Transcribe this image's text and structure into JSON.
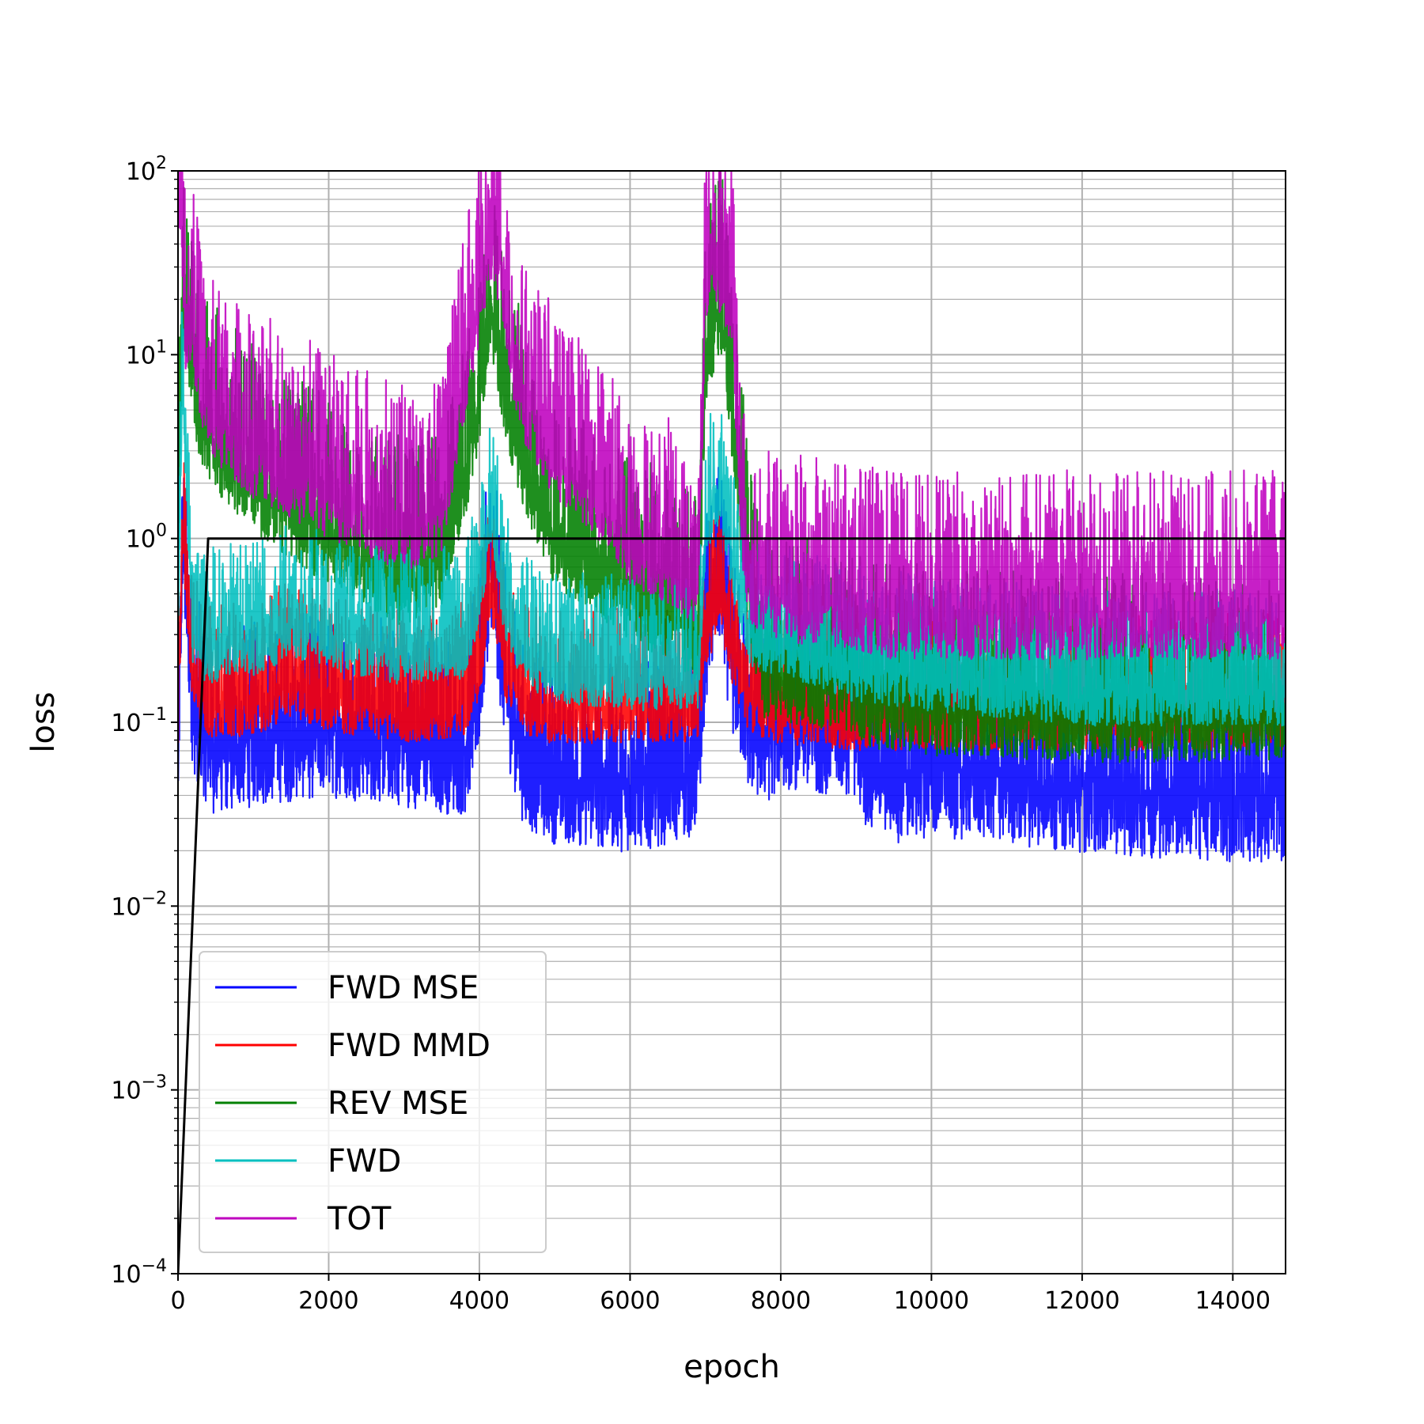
{
  "chart_data": {
    "type": "line",
    "title": "",
    "xlabel": "epoch",
    "ylabel": "loss",
    "xlim": [
      0,
      14700
    ],
    "ylim": [
      0.0001,
      100
    ],
    "yscale": "log",
    "grid": true,
    "legend_position": "bottom-left",
    "x_ticks": [
      0,
      2000,
      4000,
      6000,
      8000,
      10000,
      12000,
      14000
    ],
    "x_tick_labels": [
      "0",
      "2000",
      "4000",
      "6000",
      "8000",
      "10000",
      "12000",
      "14000"
    ],
    "y_ticks": [
      {
        "value": 0.0001,
        "base": "10",
        "exp": "−4"
      },
      {
        "value": 0.001,
        "base": "10",
        "exp": "−3"
      },
      {
        "value": 0.01,
        "base": "10",
        "exp": "−2"
      },
      {
        "value": 0.1,
        "base": "10",
        "exp": "−1"
      },
      {
        "value": 1,
        "base": "10",
        "exp": "0"
      },
      {
        "value": 10,
        "base": "10",
        "exp": "1"
      },
      {
        "value": 100,
        "base": "10",
        "exp": "2"
      }
    ],
    "series": [
      {
        "name": "FWD MSE",
        "color": "#0000ff",
        "x": [
          0,
          60,
          200,
          400,
          500,
          1000,
          2000,
          3000,
          3800,
          4000,
          4150,
          4350,
          4600,
          5000,
          6000,
          6500,
          6900,
          7000,
          7200,
          7350,
          7600,
          7800,
          8000,
          9000,
          9150,
          9300,
          9500,
          10000,
          11000,
          12000,
          13000,
          14000,
          14700
        ],
        "y": [
          0.05,
          1.0,
          0.12,
          0.08,
          0.07,
          0.08,
          0.09,
          0.08,
          0.07,
          0.15,
          0.8,
          0.15,
          0.06,
          0.05,
          0.045,
          0.05,
          0.055,
          0.3,
          0.6,
          0.2,
          0.09,
          0.08,
          0.1,
          0.09,
          0.06,
          0.06,
          0.05,
          0.055,
          0.05,
          0.045,
          0.042,
          0.04,
          0.04
        ],
        "noise_up": 0.3,
        "noise_down": 0.28
      },
      {
        "name": "FWD MMD",
        "color": "#ff0000",
        "x": [
          0,
          60,
          200,
          400,
          1000,
          1500,
          2000,
          3000,
          3800,
          4000,
          4150,
          4350,
          4600,
          5000,
          6000,
          6900,
          7000,
          7200,
          7350,
          7600,
          8000,
          9000,
          10000,
          12000,
          14000,
          14700
        ],
        "y": [
          0.1,
          1.2,
          0.18,
          0.13,
          0.13,
          0.17,
          0.14,
          0.12,
          0.13,
          0.2,
          0.6,
          0.2,
          0.13,
          0.12,
          0.12,
          0.12,
          0.3,
          0.5,
          0.25,
          0.13,
          0.12,
          0.11,
          0.11,
          0.11,
          0.11,
          0.11
        ],
        "noise_up": 0.25,
        "noise_down": 0.15
      },
      {
        "name": "REV MSE",
        "color": "#008000",
        "x": [
          0,
          60,
          150,
          300,
          1000,
          2000,
          3000,
          3500,
          3800,
          4000,
          4150,
          4350,
          4600,
          5000,
          6000,
          6500,
          6900,
          7000,
          7200,
          7350,
          7600,
          7800,
          8500,
          9000,
          9150,
          9500,
          10000,
          12000,
          14000,
          14700
        ],
        "y": [
          1.0,
          15,
          12,
          4.0,
          2.0,
          1.0,
          0.6,
          0.8,
          2.0,
          6.0,
          20.0,
          6.0,
          2.5,
          1.0,
          0.5,
          0.4,
          0.3,
          10.0,
          20.0,
          5.0,
          0.4,
          0.18,
          0.17,
          0.16,
          0.13,
          0.13,
          0.12,
          0.11,
          0.11,
          0.11
        ],
        "noise_up": 0.35,
        "noise_down": 0.2
      },
      {
        "name": "FWD",
        "color": "#00bfbf",
        "x": [
          0,
          60,
          200,
          400,
          1000,
          1500,
          2000,
          3000,
          3800,
          4000,
          4150,
          4350,
          4600,
          5000,
          6000,
          6900,
          7000,
          7200,
          7350,
          7600,
          8000,
          9000,
          10000,
          12000,
          14000,
          14700
        ],
        "y": [
          0.3,
          8.0,
          0.3,
          0.25,
          0.28,
          0.35,
          0.3,
          0.25,
          0.27,
          0.5,
          1.5,
          0.4,
          0.25,
          0.2,
          0.18,
          0.18,
          1.2,
          2.0,
          0.8,
          0.3,
          0.28,
          0.2,
          0.18,
          0.15,
          0.15,
          0.15
        ],
        "noise_up": 0.25,
        "noise_down": 0.15
      },
      {
        "name": "TOT",
        "color": "#bf00bf",
        "x": [
          0,
          40,
          100,
          200,
          300,
          400,
          1000,
          2000,
          3000,
          3500,
          3800,
          4000,
          4150,
          4300,
          4400,
          4600,
          5000,
          5500,
          6000,
          6500,
          6900,
          7000,
          7100,
          7200,
          7350,
          7500,
          7600,
          8000,
          9000,
          9500,
          10000,
          12000,
          14000,
          14700
        ],
        "y": [
          100,
          80,
          15,
          15,
          8.0,
          5.0,
          3.0,
          1.8,
          1.2,
          1.5,
          8.0,
          20.0,
          45.0,
          30.0,
          12.0,
          6.0,
          3.0,
          2.0,
          1.0,
          0.8,
          0.6,
          25.0,
          40.0,
          30.0,
          20.0,
          1.0,
          0.6,
          0.5,
          0.45,
          0.4,
          0.4,
          0.4,
          0.4,
          0.4
        ],
        "noise_up": 0.35,
        "noise_down": 0.2
      },
      {
        "name": "",
        "color": "#000000",
        "x": [
          0,
          400,
          14700
        ],
        "y": [
          0.0001,
          1,
          1
        ],
        "noise_up": 0,
        "noise_down": 0
      }
    ]
  }
}
